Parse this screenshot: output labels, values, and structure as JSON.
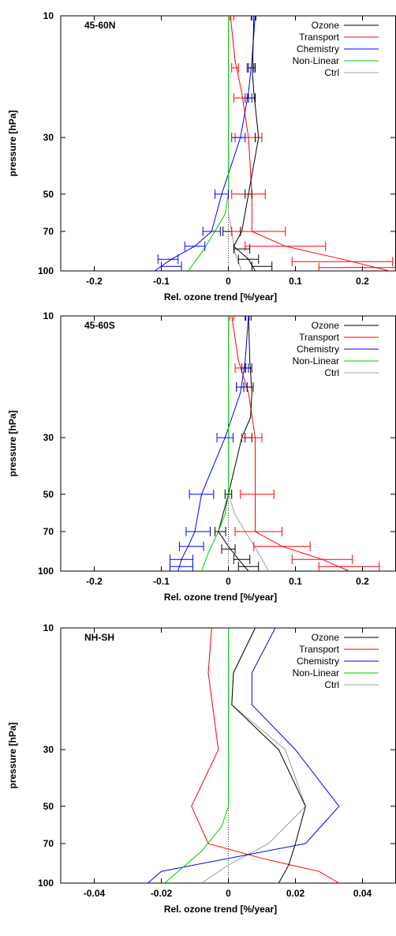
{
  "chart_data": [
    {
      "type": "line",
      "panel_label": "45-60N",
      "xlabel": "Rel. ozone trend [%/year]",
      "ylabel": "pressure [hPa]",
      "xlim": [
        -0.25,
        0.25
      ],
      "ylim": [
        100,
        10
      ],
      "y_scale": "log",
      "x_ticks": [
        -0.2,
        -0.1,
        0,
        0.1,
        0.2
      ],
      "x_tick_labels": [
        "-0.2",
        "-0.1",
        "0",
        "0.1",
        "0.2"
      ],
      "y_ticks": [
        10,
        30,
        50,
        70,
        100
      ],
      "y_tick_labels": [
        "10",
        "30",
        "50",
        "70",
        "100"
      ],
      "legend_position": "top-right",
      "series": [
        {
          "name": "Ozone",
          "color": "#000000",
          "x": [
            0.038,
            0.037,
            0.036,
            0.038,
            0.045,
            0.03,
            0.02,
            0.008,
            0.03,
            0.04
          ],
          "y": [
            10,
            13,
            17,
            20,
            30,
            50,
            70,
            80,
            90,
            100
          ],
          "err": [
            0.002,
            0.002,
            0.005,
            0.005,
            0.005,
            0.005,
            0.005,
            0,
            0,
            0
          ]
        },
        {
          "name": "Transport",
          "color": "#ff0000",
          "x": [
            0.003,
            0.01,
            0.02,
            0.03,
            0.035,
            0.035,
            0.085,
            0.17,
            0.24
          ],
          "y": [
            10,
            15,
            20,
            30,
            50,
            70,
            80,
            90,
            100
          ],
          "err": [
            0.003,
            0.005,
            0.01,
            0.02,
            0.02,
            0.05,
            0.06,
            0.07,
            0
          ]
        },
        {
          "name": "Chemistry",
          "color": "#0000ff",
          "x": [
            0.04,
            0.035,
            0.03,
            0.018,
            -0.01,
            -0.025,
            -0.05,
            -0.085,
            -0.11
          ],
          "y": [
            10,
            15,
            20,
            30,
            50,
            70,
            80,
            90,
            100
          ],
          "err": [
            0.002,
            0.005,
            0.005,
            0.01,
            0.01,
            0.013,
            0.015,
            0.015,
            0
          ]
        },
        {
          "name": "Non-Linear",
          "color": "#00cc00",
          "x": [
            0.0,
            0.0,
            0.0,
            0.0,
            0.0,
            -0.005,
            -0.02,
            -0.04,
            -0.06
          ],
          "y": [
            10,
            20,
            30,
            40,
            50,
            60,
            70,
            85,
            100
          ]
        },
        {
          "name": "Ctrl",
          "color": "#a0a0a0",
          "x": [
            0.0,
            0.0,
            0.0,
            0.0,
            0.0,
            0.005,
            0.01,
            0.02
          ],
          "y": [
            10,
            20,
            30,
            50,
            60,
            70,
            85,
            100
          ]
        }
      ],
      "errorbars": [
        {
          "series": "Ozone",
          "x": 0.038,
          "y": 10,
          "xerr": 0.003
        },
        {
          "series": "Ozone",
          "x": 0.035,
          "y": 16,
          "xerr": 0.005
        },
        {
          "series": "Ozone",
          "x": 0.035,
          "y": 21,
          "xerr": 0.005
        },
        {
          "series": "Ozone",
          "x": 0.045,
          "y": 30,
          "xerr": 0.005
        },
        {
          "series": "Ozone",
          "x": 0.03,
          "y": 50,
          "xerr": 0.005
        },
        {
          "series": "Ozone",
          "x": 0.005,
          "y": 70,
          "xerr": 0.013
        },
        {
          "series": "Ozone",
          "x": 0.02,
          "y": 82,
          "xerr": 0.012
        },
        {
          "series": "Ozone",
          "x": 0.03,
          "y": 90,
          "xerr": 0.015
        },
        {
          "series": "Ozone",
          "x": 0.05,
          "y": 96,
          "xerr": 0.015
        },
        {
          "series": "Transport",
          "x": 0.005,
          "y": 10,
          "xerr": 0.003
        },
        {
          "series": "Transport",
          "x": 0.01,
          "y": 16,
          "xerr": 0.005
        },
        {
          "series": "Transport",
          "x": 0.018,
          "y": 21,
          "xerr": 0.01
        },
        {
          "series": "Transport",
          "x": 0.03,
          "y": 30,
          "xerr": 0.02
        },
        {
          "series": "Transport",
          "x": 0.03,
          "y": 50,
          "xerr": 0.025
        },
        {
          "series": "Transport",
          "x": 0.045,
          "y": 70,
          "xerr": 0.04
        },
        {
          "series": "Transport",
          "x": 0.085,
          "y": 80,
          "xerr": 0.06
        },
        {
          "series": "Transport",
          "x": 0.17,
          "y": 92,
          "xerr": 0.075
        },
        {
          "series": "Transport",
          "x": 0.21,
          "y": 97,
          "xerr": 0.075
        },
        {
          "series": "Chemistry",
          "x": 0.037,
          "y": 10,
          "xerr": 0.003
        },
        {
          "series": "Chemistry",
          "x": 0.033,
          "y": 16,
          "xerr": 0.005
        },
        {
          "series": "Chemistry",
          "x": 0.03,
          "y": 21,
          "xerr": 0.005
        },
        {
          "series": "Chemistry",
          "x": 0.015,
          "y": 30,
          "xerr": 0.01
        },
        {
          "series": "Chemistry",
          "x": -0.01,
          "y": 50,
          "xerr": 0.01
        },
        {
          "series": "Chemistry",
          "x": -0.025,
          "y": 70,
          "xerr": 0.013
        },
        {
          "series": "Chemistry",
          "x": -0.05,
          "y": 80,
          "xerr": 0.015
        },
        {
          "series": "Chemistry",
          "x": -0.09,
          "y": 90,
          "xerr": 0.015
        },
        {
          "series": "Chemistry",
          "x": -0.085,
          "y": 96,
          "xerr": 0.015
        }
      ]
    },
    {
      "type": "line",
      "panel_label": "45-60S",
      "xlabel": "Rel. ozone trend [%/year]",
      "ylabel": "pressure [hPa]",
      "xlim": [
        -0.25,
        0.25
      ],
      "ylim": [
        100,
        10
      ],
      "y_scale": "log",
      "x_ticks": [
        -0.2,
        -0.1,
        0,
        0.1,
        0.2
      ],
      "x_tick_labels": [
        "-0.2",
        "-0.1",
        "0",
        "0.1",
        "0.2"
      ],
      "y_ticks": [
        10,
        30,
        50,
        70,
        100
      ],
      "y_tick_labels": [
        "10",
        "30",
        "50",
        "70",
        "100"
      ],
      "legend_position": "top-right",
      "series": [
        {
          "name": "Ozone",
          "color": "#000000",
          "x": [
            0.03,
            0.032,
            0.035,
            0.033,
            0.02,
            0.0,
            -0.015,
            0.0,
            0.015,
            0.03
          ],
          "y": [
            10,
            15,
            20,
            25,
            30,
            50,
            70,
            80,
            90,
            100
          ]
        },
        {
          "name": "Transport",
          "color": "#ff0000",
          "x": [
            0.005,
            0.015,
            0.03,
            0.04,
            0.04,
            0.04,
            0.08,
            0.14,
            0.18
          ],
          "y": [
            10,
            15,
            20,
            30,
            50,
            70,
            80,
            90,
            100
          ]
        },
        {
          "name": "Chemistry",
          "color": "#0000ff",
          "x": [
            0.03,
            0.025,
            0.018,
            -0.005,
            -0.04,
            -0.05,
            -0.06,
            -0.07,
            -0.075
          ],
          "y": [
            10,
            15,
            20,
            30,
            50,
            70,
            80,
            90,
            100
          ]
        },
        {
          "name": "Non-Linear",
          "color": "#00cc00",
          "x": [
            0.0,
            0.0,
            0.0,
            0.0,
            -0.005,
            -0.015,
            -0.03,
            -0.04
          ],
          "y": [
            10,
            20,
            30,
            50,
            60,
            70,
            85,
            100
          ]
        },
        {
          "name": "Ctrl",
          "color": "#a0a0a0",
          "x": [
            0.0,
            0.0,
            0.0,
            0.0,
            0.01,
            0.025,
            0.045,
            0.06
          ],
          "y": [
            10,
            20,
            30,
            50,
            60,
            70,
            85,
            100
          ]
        }
      ],
      "errorbars": [
        {
          "series": "Ozone",
          "x": 0.03,
          "y": 10,
          "xerr": 0.004
        },
        {
          "series": "Ozone",
          "x": 0.03,
          "y": 16,
          "xerr": 0.005
        },
        {
          "series": "Ozone",
          "x": 0.03,
          "y": 19,
          "xerr": 0.007
        },
        {
          "series": "Ozone",
          "x": 0.03,
          "y": 30,
          "xerr": 0.005
        },
        {
          "series": "Ozone",
          "x": 0.0,
          "y": 50,
          "xerr": 0.005
        },
        {
          "series": "Ozone",
          "x": -0.012,
          "y": 70,
          "xerr": 0.008
        },
        {
          "series": "Ozone",
          "x": 0.0,
          "y": 82,
          "xerr": 0.01
        },
        {
          "series": "Ozone",
          "x": 0.02,
          "y": 90,
          "xerr": 0.012
        },
        {
          "series": "Ozone",
          "x": 0.03,
          "y": 96,
          "xerr": 0.015
        },
        {
          "series": "Transport",
          "x": 0.005,
          "y": 10,
          "xerr": 0.003
        },
        {
          "series": "Transport",
          "x": 0.018,
          "y": 16,
          "xerr": 0.008
        },
        {
          "series": "Transport",
          "x": 0.02,
          "y": 19,
          "xerr": 0.008
        },
        {
          "series": "Transport",
          "x": 0.035,
          "y": 30,
          "xerr": 0.015
        },
        {
          "series": "Transport",
          "x": 0.043,
          "y": 50,
          "xerr": 0.025
        },
        {
          "series": "Transport",
          "x": 0.045,
          "y": 70,
          "xerr": 0.035
        },
        {
          "series": "Transport",
          "x": 0.08,
          "y": 80,
          "xerr": 0.042
        },
        {
          "series": "Transport",
          "x": 0.14,
          "y": 90,
          "xerr": 0.045
        },
        {
          "series": "Transport",
          "x": 0.18,
          "y": 96,
          "xerr": 0.045
        },
        {
          "series": "Chemistry",
          "x": 0.028,
          "y": 10,
          "xerr": 0.003
        },
        {
          "series": "Chemistry",
          "x": 0.025,
          "y": 16,
          "xerr": 0.005
        },
        {
          "series": "Chemistry",
          "x": 0.02,
          "y": 19,
          "xerr": 0.008
        },
        {
          "series": "Chemistry",
          "x": -0.005,
          "y": 30,
          "xerr": 0.012
        },
        {
          "series": "Chemistry",
          "x": -0.04,
          "y": 50,
          "xerr": 0.018
        },
        {
          "series": "Chemistry",
          "x": -0.045,
          "y": 70,
          "xerr": 0.018
        },
        {
          "series": "Chemistry",
          "x": -0.055,
          "y": 80,
          "xerr": 0.018
        },
        {
          "series": "Chemistry",
          "x": -0.07,
          "y": 90,
          "xerr": 0.017
        },
        {
          "series": "Chemistry",
          "x": -0.07,
          "y": 96,
          "xerr": 0.017
        }
      ]
    },
    {
      "type": "line",
      "panel_label": "NH-SH",
      "xlabel": "Rel. ozone trend [%/year]",
      "ylabel": "pressure [hPa]",
      "xlim": [
        -0.05,
        0.05
      ],
      "ylim": [
        100,
        10
      ],
      "y_scale": "log",
      "x_ticks": [
        -0.04,
        -0.02,
        0,
        0.02,
        0.04
      ],
      "x_tick_labels": [
        "-0.04",
        "-0.02",
        "0",
        "0.02",
        "0.04"
      ],
      "y_ticks": [
        10,
        30,
        50,
        70,
        100
      ],
      "y_tick_labels": [
        "10",
        "30",
        "50",
        "70",
        "100"
      ],
      "legend_position": "top-right",
      "series": [
        {
          "name": "Ozone",
          "color": "#000000",
          "x": [
            0.008,
            0.0015,
            0.001,
            0.015,
            0.023,
            0.02,
            0.018,
            0.015
          ],
          "y": [
            10,
            15,
            20,
            30,
            50,
            70,
            85,
            100
          ]
        },
        {
          "name": "Transport",
          "color": "#ff0000",
          "x": [
            -0.005,
            -0.006,
            -0.003,
            -0.011,
            -0.006,
            0.01,
            0.027,
            0.033
          ],
          "y": [
            10,
            15,
            30,
            50,
            70,
            80,
            90,
            100
          ]
        },
        {
          "name": "Chemistry",
          "color": "#0000ff",
          "x": [
            0.014,
            0.007,
            0.007,
            0.02,
            0.033,
            0.023,
            0.0,
            -0.02,
            -0.024
          ],
          "y": [
            10,
            15,
            20,
            30,
            50,
            70,
            80,
            90,
            100
          ]
        },
        {
          "name": "Non-Linear",
          "color": "#00cc00",
          "x": [
            0.0,
            0.0,
            0.0,
            0.0,
            -0.002,
            -0.008,
            -0.015,
            -0.019
          ],
          "y": [
            10,
            20,
            30,
            50,
            60,
            75,
            90,
            100
          ]
        },
        {
          "name": "Ctrl",
          "color": "#a0a0a0",
          "x": [
            0.008,
            0.0015,
            0.001,
            0.017,
            0.023,
            0.012,
            0.0,
            -0.008
          ],
          "y": [
            10,
            15,
            20,
            30,
            50,
            70,
            85,
            100
          ]
        }
      ],
      "errorbars": []
    }
  ]
}
